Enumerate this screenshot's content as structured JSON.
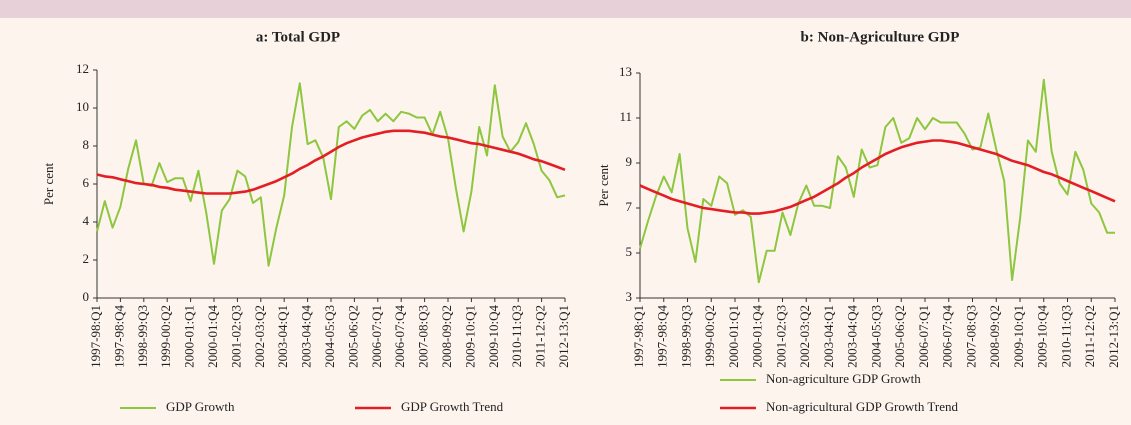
{
  "chart_data": [
    {
      "type": "line",
      "title": "a: Total GDP",
      "y_label": "Per cent",
      "categories": [
        "1997-98:Q1",
        null,
        null,
        "1997-98:Q4",
        null,
        null,
        "1998-99:Q3",
        null,
        null,
        "1999-00:Q2",
        null,
        null,
        "2000-01:Q1",
        null,
        null,
        "2000-01:Q4",
        null,
        null,
        "2001-02:Q3",
        null,
        null,
        "2002-03:Q2",
        null,
        null,
        "2003-04:Q1",
        null,
        null,
        "2003-04:Q4",
        null,
        null,
        "2004-05:Q3",
        null,
        null,
        "2005-06:Q2",
        null,
        null,
        "2006-07:Q1",
        null,
        null,
        "2006-07:Q4",
        null,
        null,
        "2007-08:Q3",
        null,
        null,
        "2008-09:Q2",
        null,
        null,
        "2009-10:Q1",
        null,
        null,
        "2009-10:Q4",
        null,
        null,
        "2010-11:Q3",
        null,
        null,
        "2011-12:Q2",
        null,
        null,
        "2012-13:Q1"
      ],
      "series": [
        {
          "name": "GDP Growth",
          "color": "#8dc63f",
          "values": [
            3.5,
            5.1,
            3.7,
            4.8,
            6.8,
            8.3,
            6.0,
            5.9,
            7.1,
            6.1,
            6.3,
            6.3,
            5.1,
            6.7,
            4.5,
            1.8,
            4.6,
            5.2,
            6.7,
            6.4,
            5.0,
            5.3,
            1.7,
            3.7,
            5.4,
            9.0,
            11.3,
            8.1,
            8.3,
            7.4,
            5.2,
            9.0,
            9.3,
            8.9,
            9.6,
            9.9,
            9.3,
            9.7,
            9.3,
            9.8,
            9.7,
            9.5,
            9.5,
            8.6,
            9.8,
            8.4,
            5.8,
            3.5,
            5.6,
            9.0,
            7.5,
            11.2,
            8.5,
            7.7,
            8.2,
            9.2,
            8.1,
            6.7,
            6.2,
            5.3,
            5.4
          ]
        },
        {
          "name": "GDP Growth Trend",
          "color": "#e31e24",
          "values": [
            6.5,
            6.4,
            6.35,
            6.25,
            6.15,
            6.05,
            6.0,
            5.95,
            5.85,
            5.8,
            5.7,
            5.65,
            5.6,
            5.55,
            5.5,
            5.5,
            5.5,
            5.5,
            5.55,
            5.6,
            5.7,
            5.85,
            6.0,
            6.15,
            6.35,
            6.55,
            6.8,
            7.0,
            7.25,
            7.45,
            7.7,
            7.95,
            8.15,
            8.3,
            8.45,
            8.55,
            8.65,
            8.75,
            8.8,
            8.8,
            8.8,
            8.75,
            8.7,
            8.6,
            8.5,
            8.45,
            8.35,
            8.25,
            8.15,
            8.1,
            8.0,
            7.9,
            7.8,
            7.7,
            7.6,
            7.45,
            7.3,
            7.2,
            7.05,
            6.9,
            6.75
          ]
        }
      ],
      "ylim": [
        0,
        12
      ],
      "yticks": [
        0,
        2,
        4,
        6,
        8,
        10,
        12
      ],
      "grid": false,
      "legend": "bottom-row"
    },
    {
      "type": "line",
      "title": "b: Non-Agriculture GDP",
      "y_label": "Per cent",
      "categories": [
        "1997-98:Q1",
        null,
        null,
        "1997-98:Q4",
        null,
        null,
        "1998-99:Q3",
        null,
        null,
        "1999-00:Q2",
        null,
        null,
        "2000-01:Q1",
        null,
        null,
        "2000-01:Q4",
        null,
        null,
        "2001-02:Q3",
        null,
        null,
        "2002-03:Q2",
        null,
        null,
        "2003-04:Q1",
        null,
        null,
        "2003-04:Q4",
        null,
        null,
        "2004-05:Q3",
        null,
        null,
        "2005-06:Q2",
        null,
        null,
        "2006-07:Q1",
        null,
        null,
        "2006-07:Q4",
        null,
        null,
        "2007-08:Q3",
        null,
        null,
        "2008-09:Q2",
        null,
        null,
        "2009-10:Q1",
        null,
        null,
        "2009-10:Q4",
        null,
        null,
        "2010-11:Q3",
        null,
        null,
        "2011-12:Q2",
        null,
        null,
        "2012-13:Q1"
      ],
      "series": [
        {
          "name": "Non-agriculture GDP Growth",
          "color": "#8dc63f",
          "values": [
            5.2,
            6.4,
            7.5,
            8.4,
            7.7,
            9.4,
            6.1,
            4.6,
            7.4,
            7.1,
            8.4,
            8.1,
            6.7,
            6.9,
            6.6,
            3.7,
            5.1,
            5.1,
            6.8,
            5.8,
            7.2,
            8.0,
            7.1,
            7.1,
            7.0,
            9.3,
            8.8,
            7.5,
            9.6,
            8.8,
            8.9,
            10.6,
            11.0,
            9.9,
            10.1,
            11.0,
            10.5,
            11.0,
            10.8,
            10.8,
            10.8,
            10.3,
            9.6,
            9.7,
            11.2,
            9.6,
            8.2,
            3.8,
            6.5,
            10.0,
            9.5,
            12.7,
            9.5,
            8.1,
            7.6,
            9.5,
            8.7,
            7.2,
            6.8,
            5.9,
            5.9
          ]
        },
        {
          "name": "Non-agricultural GDP Growth Trend",
          "color": "#e31e24",
          "values": [
            8.0,
            7.85,
            7.7,
            7.55,
            7.4,
            7.3,
            7.2,
            7.1,
            7.0,
            6.95,
            6.9,
            6.85,
            6.8,
            6.8,
            6.75,
            6.75,
            6.8,
            6.85,
            6.95,
            7.05,
            7.2,
            7.35,
            7.5,
            7.7,
            7.9,
            8.1,
            8.35,
            8.55,
            8.8,
            9.0,
            9.2,
            9.4,
            9.55,
            9.7,
            9.8,
            9.9,
            9.95,
            10.0,
            10.0,
            9.95,
            9.9,
            9.8,
            9.7,
            9.6,
            9.5,
            9.4,
            9.25,
            9.1,
            9.0,
            8.9,
            8.75,
            8.6,
            8.5,
            8.35,
            8.2,
            8.05,
            7.9,
            7.75,
            7.6,
            7.45,
            7.3
          ]
        }
      ],
      "ylim": [
        3,
        13
      ],
      "yticks": [
        3,
        5,
        7,
        9,
        11,
        13
      ],
      "grid": false,
      "legend": "bottom-stacked"
    }
  ]
}
